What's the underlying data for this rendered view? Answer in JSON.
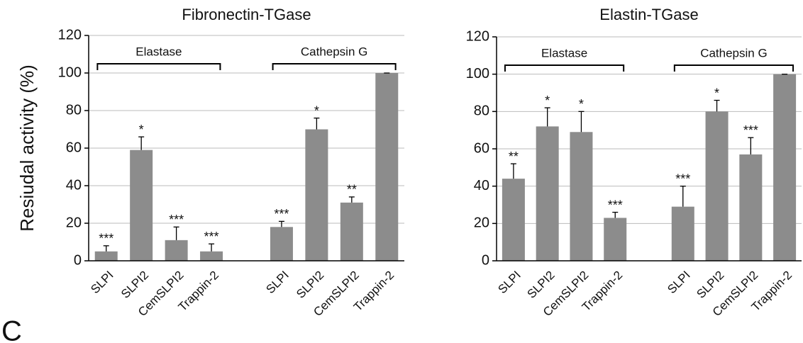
{
  "panel_label": "C",
  "chart_data": [
    {
      "type": "bar",
      "title": "Fibronectin-TGase",
      "y_label": "Resiudal activity (%)",
      "categories": [
        "SLPI",
        "SLPI2",
        "CemSLPI2",
        "Trappin-2",
        null,
        "SLPI",
        "SLPI2",
        "CemSLPI2",
        "Trappin-2"
      ],
      "values": [
        5,
        59,
        11,
        5,
        null,
        18,
        70,
        31,
        100
      ],
      "errors": [
        3,
        7,
        7,
        4,
        null,
        3,
        6,
        3,
        0
      ],
      "annotations": [
        "***",
        "*",
        "***",
        "***",
        null,
        "***",
        "*",
        "**",
        null
      ],
      "groups": [
        {
          "label": "Elastase",
          "from": 0,
          "to": 3
        },
        {
          "label": "Cathepsin G",
          "from": 5,
          "to": 8
        }
      ],
      "color": "#8c8c8c",
      "ylim": [
        0,
        120
      ],
      "yticks": [
        0,
        20,
        40,
        60,
        80,
        100,
        120
      ],
      "grid": true
    },
    {
      "type": "bar",
      "title": "Elastin-TGase",
      "categories": [
        "SLPI",
        "SLPI2",
        "CemSLPI2",
        "Trappin-2",
        null,
        "SLPI",
        "SLPI2",
        "CemSLPI2",
        "Trappin-2"
      ],
      "values": [
        44,
        72,
        69,
        23,
        null,
        29,
        80,
        57,
        100
      ],
      "errors": [
        8,
        10,
        11,
        3,
        null,
        11,
        6,
        9,
        0
      ],
      "annotations": [
        "**",
        "*",
        "*",
        "***",
        null,
        "***",
        "*",
        "***",
        null
      ],
      "groups": [
        {
          "label": "Elastase",
          "from": 0,
          "to": 3
        },
        {
          "label": "Cathepsin G",
          "from": 5,
          "to": 8
        }
      ],
      "color": "#8c8c8c",
      "ylim": [
        0,
        120
      ],
      "yticks": [
        0,
        20,
        40,
        60,
        80,
        100,
        120
      ],
      "grid": true
    }
  ]
}
